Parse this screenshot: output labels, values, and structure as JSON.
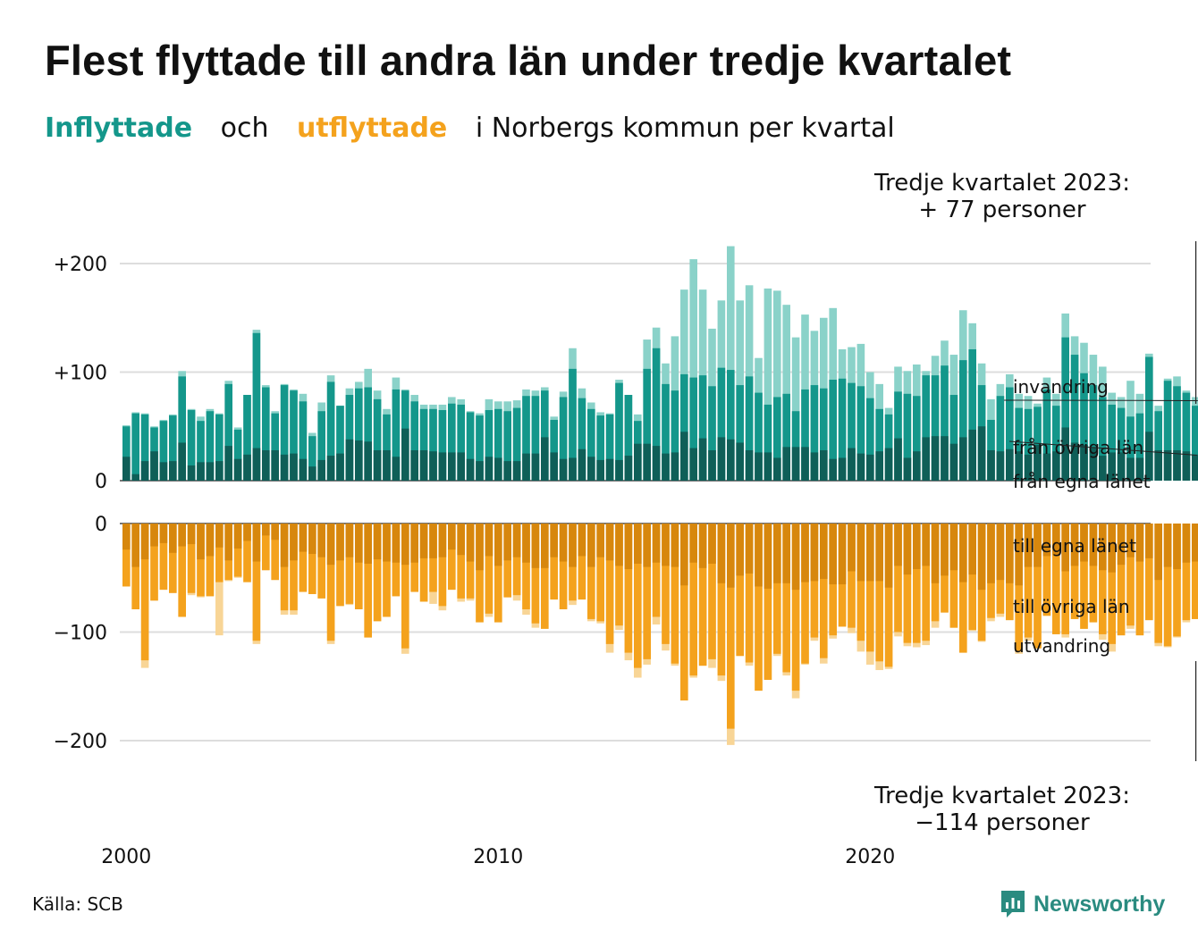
{
  "title": "Flest flyttade till andra län under tredje kvartalet",
  "subtitle": {
    "in_word": "Inflyttade",
    "and_word": "och",
    "out_word": "utflyttade",
    "rest": "i Norbergs kommun per kvartal"
  },
  "annotation_top": {
    "line1": "Tredje kvartalet 2023:",
    "line2": "+ 77 personer"
  },
  "annotation_bottom": {
    "line1": "Tredje kvartalet 2023:",
    "line2": "−114 personer"
  },
  "source": "Källa: SCB",
  "brand": "Newsworthy",
  "colors": {
    "in_own": "#0f5f58",
    "in_other": "#14978b",
    "in_immig": "#8ad2c9",
    "out_own": "#d7870d",
    "out_other": "#f4a21d",
    "out_emig": "#f8d596",
    "grid": "#dddddd"
  },
  "chart_data": {
    "type": "bar",
    "stacked": true,
    "start": {
      "year": 2000,
      "quarter": 1
    },
    "x_ticks": [
      "2000",
      "2010",
      "2020"
    ],
    "inflow_axis": {
      "ticks": [
        "0",
        "+100",
        "+200"
      ],
      "tick_values": [
        0,
        100,
        200
      ]
    },
    "outflow_axis": {
      "ticks": [
        "0",
        "−100",
        "−200"
      ],
      "tick_values": [
        0,
        -100,
        -200
      ]
    },
    "inflow_series_labels": [
      "från egna länet",
      "från övriga län",
      "invandring"
    ],
    "outflow_series_labels": [
      "till egna länet",
      "till övriga län",
      "utvandring"
    ],
    "inflow": [
      [
        22,
        50,
        51
      ],
      [
        6,
        62,
        63
      ],
      [
        18,
        61,
        62
      ],
      [
        27,
        49,
        50
      ],
      [
        17,
        55,
        56
      ],
      [
        18,
        60,
        61
      ],
      [
        35,
        96,
        101
      ],
      [
        14,
        65,
        66
      ],
      [
        17,
        55,
        59
      ],
      [
        17,
        64,
        66
      ],
      [
        18,
        61,
        62
      ],
      [
        32,
        89,
        92
      ],
      [
        20,
        47,
        49
      ],
      [
        24,
        79,
        79
      ],
      [
        30,
        136,
        139
      ],
      [
        28,
        86,
        88
      ],
      [
        28,
        62,
        64
      ],
      [
        24,
        88,
        89
      ],
      [
        25,
        83,
        84
      ],
      [
        20,
        73,
        80
      ],
      [
        13,
        41,
        44
      ],
      [
        19,
        64,
        72
      ],
      [
        23,
        91,
        97
      ],
      [
        25,
        69,
        69
      ],
      [
        38,
        79,
        85
      ],
      [
        37,
        85,
        91
      ],
      [
        36,
        86,
        103
      ],
      [
        28,
        75,
        83
      ],
      [
        28,
        61,
        66
      ],
      [
        22,
        84,
        95
      ],
      [
        48,
        83,
        84
      ],
      [
        28,
        73,
        79
      ],
      [
        28,
        66,
        70
      ],
      [
        27,
        66,
        70
      ],
      [
        26,
        65,
        70
      ],
      [
        26,
        71,
        77
      ],
      [
        26,
        70,
        75
      ],
      [
        20,
        63,
        64
      ],
      [
        18,
        60,
        62
      ],
      [
        22,
        65,
        75
      ],
      [
        21,
        66,
        73
      ],
      [
        18,
        64,
        73
      ],
      [
        18,
        67,
        74
      ],
      [
        25,
        78,
        84
      ],
      [
        25,
        78,
        83
      ],
      [
        40,
        83,
        86
      ],
      [
        26,
        56,
        59
      ],
      [
        20,
        77,
        82
      ],
      [
        21,
        103,
        122
      ],
      [
        29,
        76,
        85
      ],
      [
        22,
        66,
        72
      ],
      [
        19,
        60,
        63
      ],
      [
        20,
        61,
        62
      ],
      [
        19,
        90,
        93
      ],
      [
        23,
        79,
        79
      ],
      [
        34,
        55,
        61
      ],
      [
        34,
        103,
        130
      ],
      [
        32,
        122,
        141
      ],
      [
        25,
        89,
        108
      ],
      [
        26,
        83,
        133
      ],
      [
        45,
        98,
        176
      ],
      [
        30,
        95,
        204
      ],
      [
        39,
        97,
        176
      ],
      [
        28,
        87,
        140
      ],
      [
        40,
        104,
        166
      ],
      [
        38,
        102,
        216
      ],
      [
        35,
        88,
        166
      ],
      [
        28,
        96,
        180
      ],
      [
        26,
        81,
        113
      ],
      [
        26,
        70,
        177
      ],
      [
        21,
        77,
        175
      ],
      [
        31,
        80,
        162
      ],
      [
        31,
        64,
        132
      ],
      [
        31,
        84,
        153
      ],
      [
        26,
        88,
        138
      ],
      [
        28,
        85,
        150
      ],
      [
        20,
        93,
        159
      ],
      [
        21,
        94,
        121
      ],
      [
        30,
        90,
        123
      ],
      [
        25,
        87,
        126
      ],
      [
        24,
        76,
        100
      ],
      [
        27,
        66,
        89
      ],
      [
        30,
        61,
        67
      ],
      [
        39,
        82,
        105
      ],
      [
        21,
        80,
        101
      ],
      [
        27,
        78,
        107
      ],
      [
        40,
        97,
        101
      ],
      [
        41,
        97,
        115
      ],
      [
        41,
        106,
        129
      ],
      [
        34,
        79,
        116
      ],
      [
        40,
        111,
        157
      ],
      [
        47,
        121,
        145
      ],
      [
        50,
        88,
        108
      ],
      [
        28,
        56,
        75
      ],
      [
        27,
        78,
        89
      ],
      [
        29,
        86,
        98
      ],
      [
        27,
        67,
        80
      ],
      [
        24,
        66,
        78
      ],
      [
        33,
        68,
        71
      ],
      [
        25,
        84,
        95
      ],
      [
        27,
        69,
        80
      ],
      [
        49,
        132,
        154
      ],
      [
        35,
        116,
        133
      ],
      [
        33,
        99,
        127
      ],
      [
        31,
        88,
        116
      ],
      [
        23,
        77,
        105
      ],
      [
        26,
        70,
        81
      ],
      [
        26,
        67,
        77
      ],
      [
        21,
        59,
        92
      ],
      [
        21,
        62,
        80
      ],
      [
        45,
        114,
        117
      ],
      [
        28,
        64,
        69
      ],
      [
        28,
        92,
        94
      ],
      [
        28,
        87,
        96
      ],
      [
        27,
        81,
        83
      ],
      [
        24,
        69,
        77
      ]
    ],
    "outflow": [
      [
        24,
        58,
        58
      ],
      [
        40,
        79,
        79
      ],
      [
        33,
        126,
        133
      ],
      [
        21,
        71,
        71
      ],
      [
        18,
        61,
        61
      ],
      [
        27,
        64,
        64
      ],
      [
        21,
        86,
        86
      ],
      [
        19,
        64,
        66
      ],
      [
        33,
        67,
        68
      ],
      [
        30,
        67,
        67
      ],
      [
        22,
        54,
        103
      ],
      [
        34,
        52,
        53
      ],
      [
        23,
        49,
        50
      ],
      [
        16,
        54,
        54
      ],
      [
        35,
        108,
        111
      ],
      [
        11,
        43,
        43
      ],
      [
        15,
        52,
        52
      ],
      [
        40,
        80,
        84
      ],
      [
        34,
        80,
        84
      ],
      [
        26,
        63,
        63
      ],
      [
        28,
        65,
        65
      ],
      [
        31,
        69,
        69
      ],
      [
        38,
        108,
        111
      ],
      [
        34,
        76,
        76
      ],
      [
        31,
        74,
        75
      ],
      [
        36,
        79,
        79
      ],
      [
        37,
        105,
        105
      ],
      [
        33,
        90,
        90
      ],
      [
        35,
        86,
        86
      ],
      [
        36,
        67,
        67
      ],
      [
        38,
        115,
        120
      ],
      [
        36,
        63,
        63
      ],
      [
        32,
        72,
        72
      ],
      [
        32,
        63,
        74
      ],
      [
        31,
        76,
        80
      ],
      [
        24,
        61,
        61
      ],
      [
        29,
        69,
        72
      ],
      [
        35,
        69,
        71
      ],
      [
        43,
        91,
        91
      ],
      [
        30,
        83,
        86
      ],
      [
        39,
        91,
        91
      ],
      [
        34,
        68,
        68
      ],
      [
        31,
        66,
        71
      ],
      [
        36,
        79,
        84
      ],
      [
        41,
        92,
        96
      ],
      [
        41,
        97,
        97
      ],
      [
        31,
        70,
        70
      ],
      [
        35,
        79,
        79
      ],
      [
        40,
        71,
        75
      ],
      [
        30,
        70,
        70
      ],
      [
        40,
        88,
        90
      ],
      [
        31,
        90,
        92
      ],
      [
        34,
        111,
        119
      ],
      [
        39,
        94,
        98
      ],
      [
        42,
        119,
        126
      ],
      [
        37,
        133,
        142
      ],
      [
        40,
        125,
        130
      ],
      [
        36,
        86,
        93
      ],
      [
        39,
        111,
        117
      ],
      [
        40,
        129,
        131
      ],
      [
        57,
        163,
        163
      ],
      [
        36,
        140,
        142
      ],
      [
        41,
        131,
        131
      ],
      [
        37,
        125,
        133
      ],
      [
        55,
        140,
        145
      ],
      [
        59,
        189,
        204
      ],
      [
        48,
        122,
        122
      ],
      [
        46,
        128,
        131
      ],
      [
        58,
        154,
        154
      ],
      [
        60,
        144,
        144
      ],
      [
        55,
        120,
        122
      ],
      [
        55,
        137,
        140
      ],
      [
        61,
        154,
        161
      ],
      [
        54,
        129,
        130
      ],
      [
        53,
        105,
        108
      ],
      [
        51,
        124,
        129
      ],
      [
        56,
        103,
        106
      ],
      [
        56,
        95,
        95
      ],
      [
        44,
        96,
        101
      ],
      [
        53,
        108,
        118
      ],
      [
        53,
        118,
        130
      ],
      [
        53,
        127,
        135
      ],
      [
        59,
        132,
        134
      ],
      [
        39,
        100,
        104
      ],
      [
        47,
        110,
        113
      ],
      [
        42,
        110,
        114
      ],
      [
        39,
        108,
        112
      ],
      [
        55,
        90,
        96
      ],
      [
        48,
        82,
        82
      ],
      [
        43,
        96,
        96
      ],
      [
        54,
        119,
        119
      ],
      [
        47,
        98,
        99
      ],
      [
        61,
        108,
        109
      ],
      [
        55,
        87,
        90
      ],
      [
        52,
        83,
        86
      ],
      [
        55,
        89,
        89
      ],
      [
        57,
        118,
        120
      ],
      [
        40,
        105,
        108
      ],
      [
        40,
        115,
        115
      ],
      [
        30,
        85,
        85
      ],
      [
        29,
        102,
        102
      ],
      [
        44,
        102,
        105
      ],
      [
        39,
        88,
        88
      ],
      [
        35,
        97,
        97
      ],
      [
        39,
        91,
        91
      ],
      [
        43,
        102,
        107
      ],
      [
        45,
        111,
        118
      ],
      [
        38,
        103,
        103
      ],
      [
        31,
        94,
        97
      ],
      [
        35,
        103,
        103
      ],
      [
        32,
        89,
        89
      ],
      [
        52,
        110,
        113
      ],
      [
        40,
        113,
        114
      ],
      [
        42,
        104,
        105
      ],
      [
        36,
        89,
        91
      ],
      [
        35,
        88,
        88
      ],
      [
        40,
        111,
        114
      ]
    ]
  }
}
